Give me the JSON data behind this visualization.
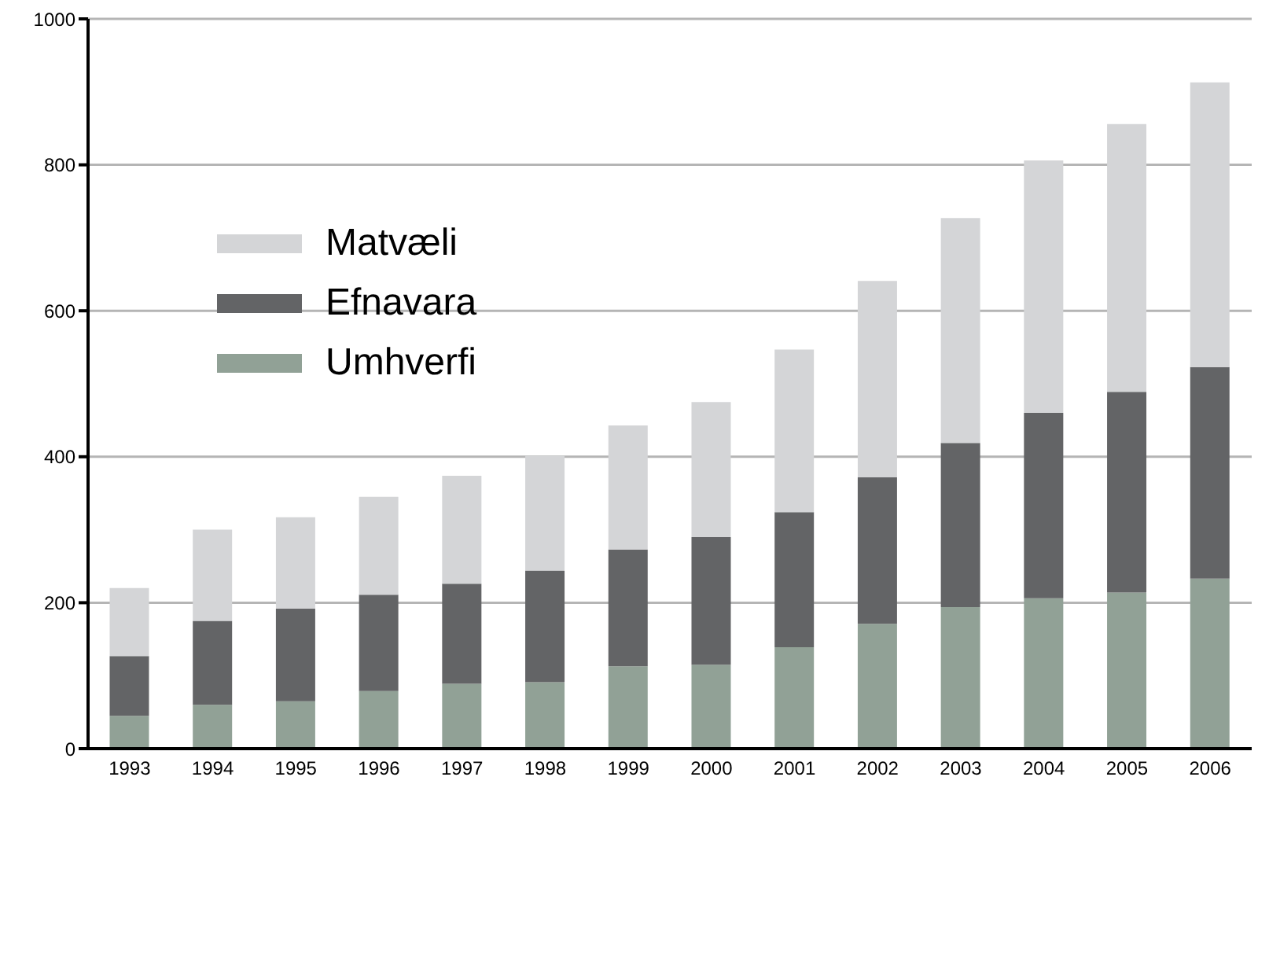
{
  "chart_data": {
    "type": "bar",
    "stacked": true,
    "categories": [
      "1993",
      "1994",
      "1995",
      "1996",
      "1997",
      "1998",
      "1999",
      "2000",
      "2001",
      "2002",
      "2003",
      "2004",
      "2005",
      "2006"
    ],
    "series": [
      {
        "name": "Umhverfi",
        "color": "#91a196",
        "values": [
          45,
          60,
          65,
          79,
          89,
          91,
          113,
          115,
          139,
          171,
          194,
          206,
          214,
          233
        ]
      },
      {
        "name": "Efnavara",
        "color": "#636466",
        "values": [
          82,
          115,
          127,
          132,
          137,
          153,
          160,
          175,
          185,
          201,
          225,
          254,
          275,
          290
        ]
      },
      {
        "name": "Matvæli",
        "color": "#d4d5d7",
        "values": [
          93,
          125,
          125,
          134,
          148,
          157,
          170,
          185,
          223,
          269,
          308,
          346,
          367,
          390
        ]
      }
    ],
    "ylim": [
      0,
      1000
    ],
    "yticks": [
      0,
      200,
      400,
      600,
      800,
      1000
    ],
    "grid": "y",
    "legend": "top left"
  }
}
